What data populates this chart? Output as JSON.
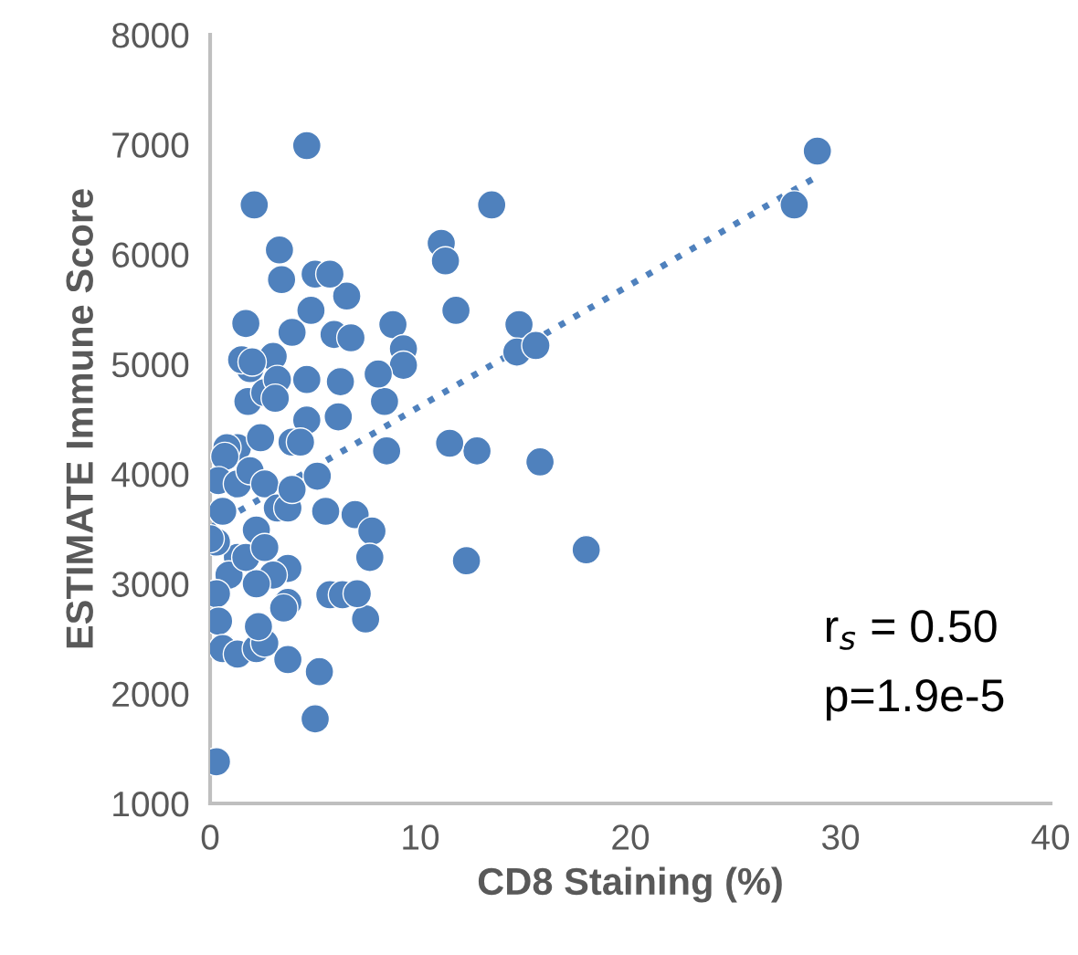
{
  "chart_data": {
    "type": "scatter",
    "xlabel": "CD8 Staining (%)",
    "ylabel": "ESTIMATE Immune Score",
    "xlim": [
      0,
      40
    ],
    "ylim": [
      1000,
      8000
    ],
    "xticks": [
      0,
      10,
      20,
      30,
      40
    ],
    "yticks": [
      1000,
      2000,
      3000,
      4000,
      5000,
      6000,
      7000,
      8000
    ],
    "grid": false,
    "legend": false,
    "marker": "circle",
    "annotations": [
      "r$_{s}$ = 0.50",
      "p=1.9e-5"
    ],
    "series": [
      {
        "color": "#4f81bd",
        "x": [
          28.9,
          27.8,
          13.4,
          4.6,
          2.1,
          11.0,
          11.2,
          11.7,
          14.7,
          14.6,
          15.5,
          15.7,
          17.9,
          12.2,
          12.7,
          11.4,
          8.7,
          9.2,
          9.2,
          8.3,
          8.4,
          8.0,
          6.5,
          5.0,
          5.7,
          3.3,
          3.4,
          4.8,
          5.9,
          6.7,
          3.9,
          3.0,
          1.9,
          1.5,
          2.0,
          1.7,
          1.8,
          2.6,
          3.2,
          4.6,
          6.2,
          6.1,
          4.6,
          3.1,
          1.3,
          2.4,
          3.9,
          4.3,
          0.8,
          0.7,
          0.4,
          0.6,
          1.3,
          1.9,
          2.6,
          3.2,
          3.7,
          3.9,
          5.1,
          5.5,
          6.9,
          7.7,
          7.6,
          7.4,
          5.7,
          6.3,
          7.0,
          3.7,
          3.7,
          3.5,
          2.2,
          1.3,
          0.9,
          0.3,
          0.3,
          0.0,
          0.4,
          0.6,
          1.3,
          2.2,
          2.6,
          2.3,
          3.7,
          5.2,
          5.0,
          0.3,
          3.0,
          2.2,
          1.7,
          2.6
        ],
        "values": [
          6940,
          6450,
          6450,
          6990,
          6450,
          6100,
          5940,
          5490,
          5360,
          5110,
          5170,
          4110,
          3310,
          3210,
          4210,
          4280,
          5360,
          5140,
          4990,
          4660,
          4210,
          4910,
          5620,
          5820,
          5820,
          6040,
          5770,
          5490,
          5270,
          5240,
          5290,
          5070,
          4960,
          5040,
          5020,
          5370,
          4660,
          4740,
          4860,
          4860,
          4840,
          4520,
          4490,
          4690,
          4240,
          4330,
          4290,
          4290,
          4240,
          4160,
          3940,
          3660,
          3910,
          4030,
          3910,
          3690,
          3690,
          3860,
          3980,
          3660,
          3630,
          3480,
          3240,
          2680,
          2900,
          2900,
          2910,
          3140,
          2830,
          2780,
          3490,
          3240,
          3080,
          2910,
          3380,
          3410,
          2660,
          2410,
          2360,
          2410,
          2460,
          2610,
          2310,
          2200,
          1770,
          1380,
          3080,
          3000,
          3240,
          3330
        ]
      },
      {
        "type": "line",
        "color": "#4f81bd",
        "line_style": "dotted",
        "marker": "none",
        "x": [
          0,
          29
        ],
        "values": [
          3510,
          6720
        ]
      }
    ]
  }
}
